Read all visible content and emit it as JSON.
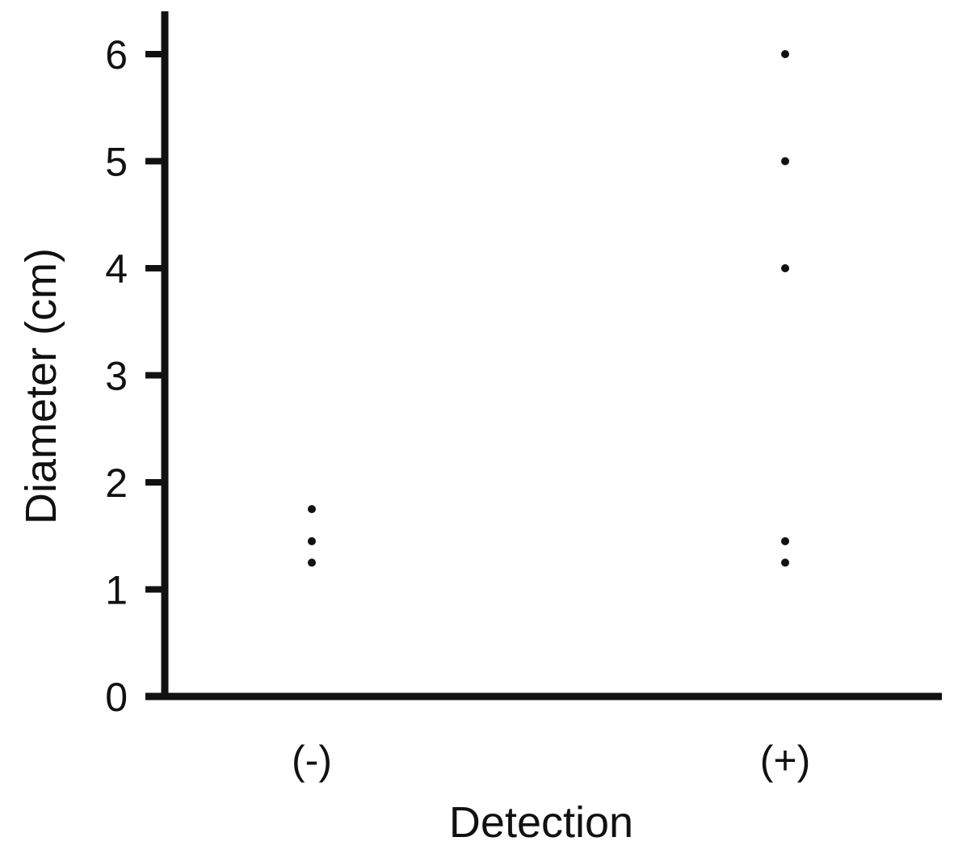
{
  "chart_data": {
    "type": "scatter",
    "title": "",
    "xlabel": "Detection",
    "ylabel": "Diameter (cm)",
    "categories": [
      "(-)",
      "(+)"
    ],
    "ylim": [
      0,
      6.5
    ],
    "yticks": [
      "0",
      "1",
      "2",
      "3",
      "4",
      "5",
      "6"
    ],
    "grid": false,
    "series": [
      {
        "values": [
          {
            "x": "(-)",
            "y": 1.75
          },
          {
            "x": "(-)",
            "y": 1.45
          },
          {
            "x": "(-)",
            "y": 1.25
          },
          {
            "x": "(+)",
            "y": 6.0
          },
          {
            "x": "(+)",
            "y": 5.0
          },
          {
            "x": "(+)",
            "y": 4.0
          },
          {
            "x": "(+)",
            "y": 1.45
          },
          {
            "x": "(+)",
            "y": 1.25
          }
        ]
      }
    ],
    "colors": {
      "axis": "#111111",
      "point": "#111111"
    }
  }
}
